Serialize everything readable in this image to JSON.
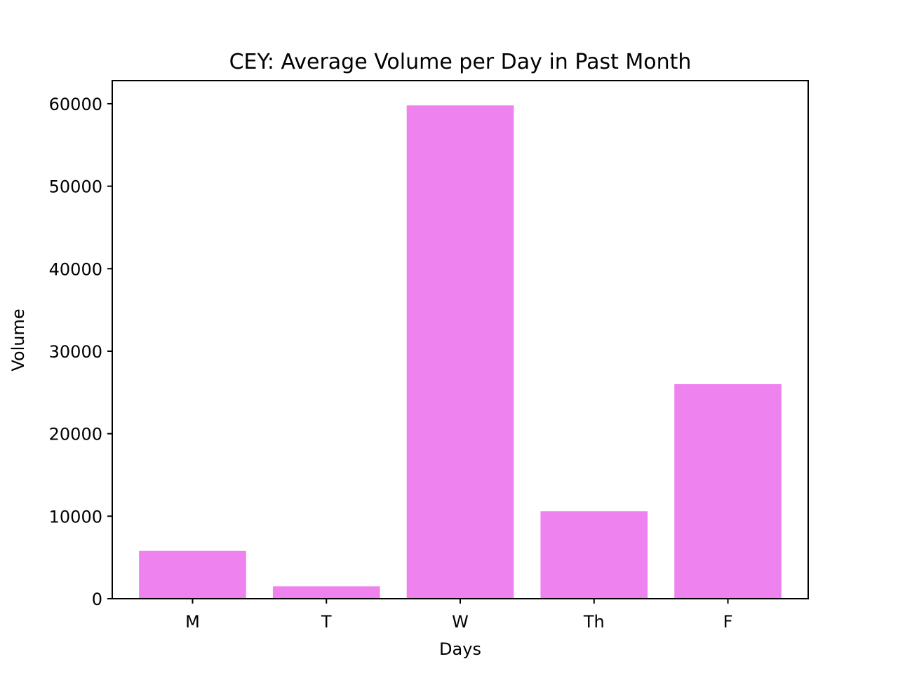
{
  "chart_data": {
    "type": "bar",
    "title": "CEY: Average Volume per Day in Past Month",
    "xlabel": "Days",
    "ylabel": "Volume",
    "categories": [
      "M",
      "T",
      "W",
      "Th",
      "F"
    ],
    "values": [
      5800,
      1500,
      59800,
      10600,
      26000
    ],
    "ylim": [
      0,
      62800
    ],
    "yticks": [
      0,
      10000,
      20000,
      30000,
      40000,
      50000,
      60000
    ],
    "bar_color": "#ee82ee",
    "grid": false,
    "legend": "none"
  }
}
